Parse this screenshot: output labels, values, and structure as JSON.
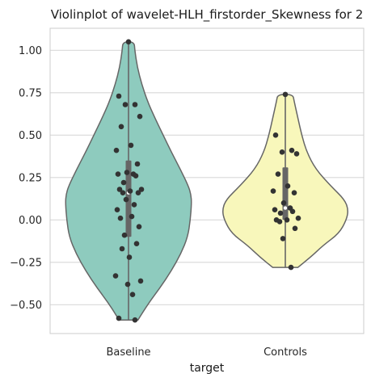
{
  "chart_data": {
    "type": "violin",
    "title": "Violinplot of wavelet-HLH_firstorder_Skewness for 2",
    "xlabel": "target",
    "ylabel": "",
    "categories": [
      "Baseline",
      "Controls"
    ],
    "ylim": [
      -0.67,
      1.13
    ],
    "yticks": [
      -0.5,
      -0.25,
      0.0,
      0.25,
      0.5,
      0.75,
      1.0
    ],
    "ytick_labels": [
      "−0.50",
      "−0.25",
      "0.00",
      "0.25",
      "0.50",
      "0.75",
      "1.00"
    ],
    "grid": "horizontal",
    "colors": {
      "Baseline": "#8ecbbe",
      "Controls": "#f8f7bb",
      "edge": "#666666",
      "points": "#333333",
      "box": "#666666",
      "median": "#ffffff",
      "grid": "#d9d9d9",
      "spine": "#cccccc"
    },
    "series": [
      {
        "category": "Baseline",
        "range": [
          -0.59,
          1.05
        ],
        "box": {
          "q1": -0.1,
          "median": 0.16,
          "q3": 0.35
        },
        "points": [
          1.05,
          0.73,
          0.68,
          0.68,
          0.61,
          0.55,
          0.44,
          0.41,
          0.33,
          0.28,
          0.27,
          0.27,
          0.26,
          0.22,
          0.18,
          0.18,
          0.17,
          0.16,
          0.16,
          0.12,
          0.09,
          0.06,
          0.02,
          0.01,
          -0.04,
          -0.09,
          -0.14,
          -0.17,
          -0.22,
          -0.33,
          -0.36,
          -0.38,
          -0.44,
          -0.58,
          -0.59
        ],
        "density": [
          [
            -0.59,
            0.15
          ],
          [
            -0.5,
            0.3
          ],
          [
            -0.4,
            0.5
          ],
          [
            -0.3,
            0.68
          ],
          [
            -0.2,
            0.83
          ],
          [
            -0.1,
            0.94
          ],
          [
            0.0,
            0.98
          ],
          [
            0.1,
            1.0
          ],
          [
            0.15,
            0.99
          ],
          [
            0.2,
            0.95
          ],
          [
            0.3,
            0.82
          ],
          [
            0.4,
            0.68
          ],
          [
            0.5,
            0.55
          ],
          [
            0.6,
            0.42
          ],
          [
            0.7,
            0.3
          ],
          [
            0.8,
            0.21
          ],
          [
            0.9,
            0.14
          ],
          [
            1.0,
            0.1
          ],
          [
            1.05,
            0.09
          ]
        ]
      },
      {
        "category": "Controls",
        "range": [
          -0.28,
          0.74
        ],
        "box": {
          "q1": 0.0,
          "median": 0.07,
          "q3": 0.31
        },
        "points": [
          0.74,
          0.5,
          0.41,
          0.4,
          0.39,
          0.27,
          0.2,
          0.17,
          0.16,
          0.1,
          0.07,
          0.06,
          0.05,
          0.04,
          0.01,
          0.0,
          0.0,
          -0.01,
          -0.05,
          -0.11,
          -0.28
        ],
        "density": [
          [
            -0.28,
            0.2
          ],
          [
            -0.22,
            0.4
          ],
          [
            -0.15,
            0.6
          ],
          [
            -0.08,
            0.85
          ],
          [
            0.0,
            0.97
          ],
          [
            0.06,
            1.0
          ],
          [
            0.12,
            0.94
          ],
          [
            0.2,
            0.72
          ],
          [
            0.3,
            0.48
          ],
          [
            0.4,
            0.34
          ],
          [
            0.5,
            0.26
          ],
          [
            0.6,
            0.2
          ],
          [
            0.7,
            0.14
          ],
          [
            0.74,
            0.12
          ]
        ]
      }
    ]
  }
}
